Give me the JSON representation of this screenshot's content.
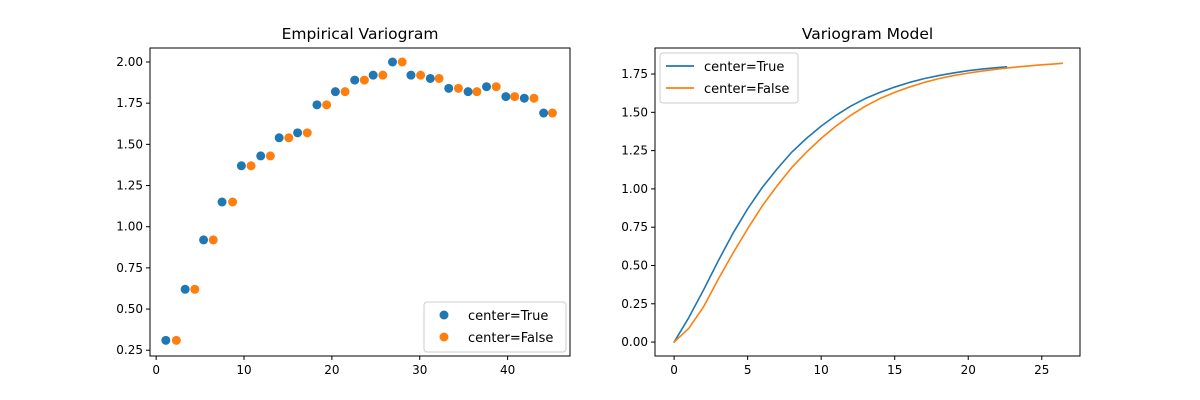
{
  "chart_data": [
    {
      "type": "scatter",
      "title": "Empirical Variogram",
      "xlabel": "",
      "ylabel": "",
      "xlim": [
        -0.7,
        47.1
      ],
      "ylim": [
        0.215,
        2.085
      ],
      "xticks": [
        0,
        10,
        20,
        30,
        40
      ],
      "yticks": [
        0.25,
        0.5,
        0.75,
        1.0,
        1.25,
        1.5,
        1.75,
        2.0
      ],
      "grid": false,
      "legend": "lower-right",
      "series": [
        {
          "name": "center=True",
          "color": "#1f77b4",
          "x": [
            1.1,
            3.3,
            5.4,
            7.5,
            9.7,
            11.9,
            14.0,
            16.1,
            18.3,
            20.4,
            22.6,
            24.7,
            26.9,
            29.0,
            31.2,
            33.3,
            35.5,
            37.6,
            39.8,
            41.9,
            44.1
          ],
          "y": [
            0.31,
            0.62,
            0.92,
            1.15,
            1.37,
            1.43,
            1.54,
            1.57,
            1.74,
            1.82,
            1.89,
            1.92,
            2.0,
            1.92,
            1.9,
            1.84,
            1.82,
            1.85,
            1.79,
            1.78,
            1.69
          ]
        },
        {
          "name": "center=False",
          "color": "#ff7f0e",
          "x": [
            2.3,
            4.4,
            6.5,
            8.7,
            10.8,
            13.0,
            15.1,
            17.2,
            19.4,
            21.5,
            23.7,
            25.8,
            28.0,
            30.1,
            32.2,
            34.4,
            36.5,
            38.7,
            40.8,
            43.0,
            45.1
          ],
          "y": [
            0.31,
            0.62,
            0.92,
            1.15,
            1.37,
            1.43,
            1.54,
            1.57,
            1.74,
            1.82,
            1.89,
            1.92,
            2.0,
            1.92,
            1.9,
            1.84,
            1.82,
            1.85,
            1.79,
            1.78,
            1.69
          ]
        }
      ]
    },
    {
      "type": "line",
      "title": "Variogram Model",
      "xlabel": "",
      "ylabel": "",
      "xlim": [
        -1.3,
        27.6
      ],
      "ylim": [
        -0.091,
        1.92
      ],
      "xticks": [
        0,
        5,
        10,
        15,
        20,
        25
      ],
      "yticks": [
        0.0,
        0.25,
        0.5,
        0.75,
        1.0,
        1.25,
        1.5,
        1.75
      ],
      "grid": false,
      "legend": "upper-left",
      "series": [
        {
          "name": "center=True",
          "color": "#1f77b4",
          "x": [
            0,
            1,
            2,
            3,
            4,
            5,
            6,
            7,
            8,
            9,
            10,
            11,
            12,
            13,
            14,
            15,
            16,
            17,
            18,
            19,
            20,
            21,
            22,
            22.6
          ],
          "y": [
            0.0,
            0.16,
            0.34,
            0.53,
            0.71,
            0.87,
            1.01,
            1.13,
            1.24,
            1.33,
            1.41,
            1.48,
            1.54,
            1.59,
            1.63,
            1.665,
            1.695,
            1.72,
            1.74,
            1.757,
            1.772,
            1.783,
            1.792,
            1.797
          ]
        },
        {
          "name": "center=False",
          "color": "#ff7f0e",
          "x": [
            0,
            1,
            2,
            3,
            4,
            5,
            6,
            7,
            8,
            9,
            10,
            11,
            12,
            13,
            14,
            15,
            16,
            17,
            18,
            19,
            20,
            21,
            22,
            23,
            24,
            25,
            26,
            26.4
          ],
          "y": [
            0.0,
            0.09,
            0.23,
            0.41,
            0.58,
            0.74,
            0.89,
            1.02,
            1.14,
            1.24,
            1.33,
            1.41,
            1.48,
            1.54,
            1.59,
            1.63,
            1.665,
            1.695,
            1.72,
            1.74,
            1.756,
            1.77,
            1.782,
            1.793,
            1.802,
            1.81,
            1.817,
            1.82
          ]
        }
      ]
    }
  ]
}
